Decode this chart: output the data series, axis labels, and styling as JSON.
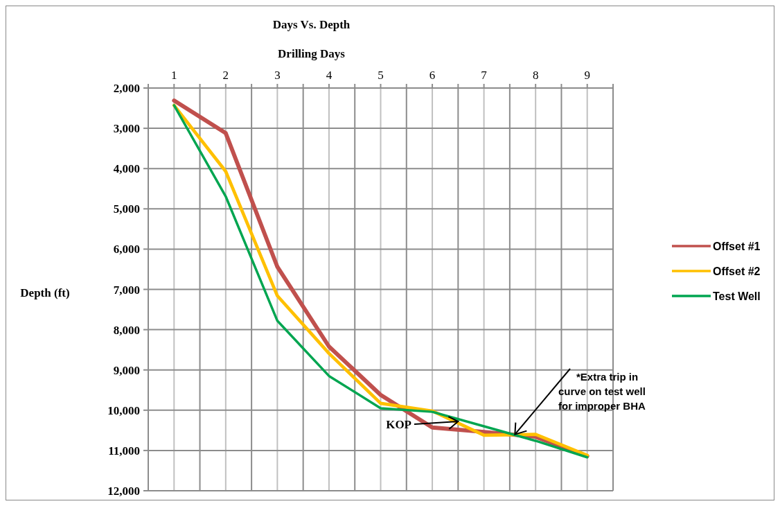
{
  "chart_data": {
    "type": "line",
    "title": "Days Vs. Depth",
    "xlabel": "Drilling Days",
    "ylabel": "Depth (ft)",
    "x": [
      1,
      2,
      3,
      4,
      5,
      6,
      7,
      8,
      9
    ],
    "series": [
      {
        "name": "Offset #1",
        "color": "#c0504d",
        "values": [
          2310,
          3120,
          6440,
          8420,
          9620,
          10430,
          10540,
          10660,
          11140
        ]
      },
      {
        "name": "Offset #2",
        "color": "#ffc000",
        "values": [
          2430,
          4070,
          7160,
          8590,
          9830,
          10020,
          10620,
          10600,
          11120
        ]
      },
      {
        "name": "Test Well",
        "color": "#00a550",
        "values": [
          2430,
          4690,
          7780,
          9150,
          9950,
          10040,
          10400,
          10760,
          11170
        ]
      }
    ],
    "xlim": [
      0.5,
      9.5
    ],
    "xticks": [
      {
        "value": 0.5,
        "label": null
      },
      1,
      {
        "value": 1.5,
        "label": null
      },
      2,
      {
        "value": 2.5,
        "label": null
      },
      3,
      {
        "value": 3.5,
        "label": null
      },
      4,
      {
        "value": 4.5,
        "label": null
      },
      5,
      {
        "value": 5.5,
        "label": null
      },
      6,
      {
        "value": 6.5,
        "label": null
      },
      7,
      {
        "value": 7.5,
        "label": null
      },
      8,
      {
        "value": 8.5,
        "label": null
      },
      9,
      {
        "value": 9.5,
        "label": null
      }
    ],
    "ylim": [
      12000,
      2000
    ],
    "yticks": [
      {
        "value": 2000,
        "label": "2,000"
      },
      {
        "value": 3000,
        "label": "3,000"
      },
      {
        "value": 4000,
        "label": "4,000"
      },
      {
        "value": 5000,
        "label": "5,000"
      },
      {
        "value": 6000,
        "label": "6,000"
      },
      {
        "value": 7000,
        "label": "7,000"
      },
      {
        "value": 8000,
        "label": "8,000"
      },
      {
        "value": 9000,
        "label": "9,000"
      },
      {
        "value": 10000,
        "label": "10,000"
      },
      {
        "value": 11000,
        "label": "11,000"
      },
      {
        "value": 12000,
        "label": "12,000"
      }
    ],
    "grid": true,
    "legend": "right",
    "marker": "none",
    "line_style": "solid",
    "annotations": [
      {
        "text": "KOP",
        "x": 6.5,
        "y": 10280
      },
      {
        "text": "*Extra trip in curve on test well for improper BHA",
        "x": 7.6,
        "y": 10600
      }
    ]
  }
}
